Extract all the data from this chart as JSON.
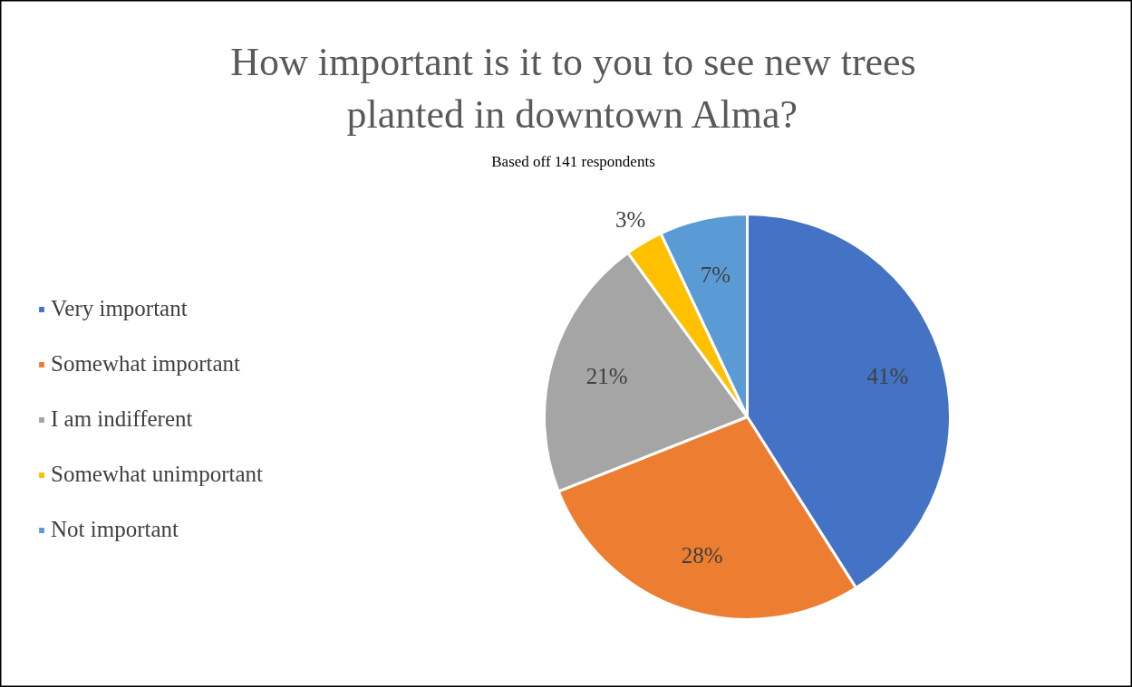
{
  "chart_data": {
    "type": "pie",
    "title": "How important is it to you to see new trees planted in downtown Alma?",
    "subtitle": "Based off 141 respondents",
    "categories": [
      "Very important",
      "Somewhat important",
      "I am indifferent",
      "Somewhat unimportant",
      "Not important"
    ],
    "values": [
      41,
      28,
      21,
      3,
      7
    ],
    "colors": [
      "#4472c4",
      "#ed7d31",
      "#a5a5a5",
      "#ffc000",
      "#5b9bd5"
    ],
    "value_labels": [
      "41%",
      "28%",
      "21%",
      "3%",
      "7%"
    ],
    "legend": "left"
  }
}
